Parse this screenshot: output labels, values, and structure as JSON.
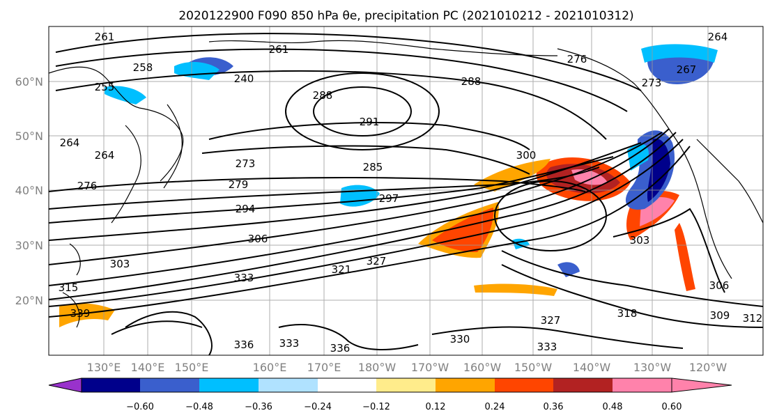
{
  "title": "2020122900 F090 850 hPa θe, precipitation PC (2021010212 - 2021010312)",
  "map": {
    "lat_labels": [
      "60°N",
      "50°N",
      "40°N",
      "30°N",
      "20°N"
    ],
    "lon_labels": [
      "130°E",
      "140°E",
      "150°E",
      "160°E",
      "170°E",
      "180°W",
      "170°W",
      "160°W",
      "150°W",
      "140°W",
      "130°W",
      "120°W"
    ],
    "contour_labels": [
      "261",
      "258",
      "255",
      "264",
      "264",
      "276",
      "261",
      "240",
      "288",
      "291",
      "288",
      "285",
      "279",
      "273",
      "294",
      "297",
      "300",
      "306",
      "303",
      "303",
      "315",
      "333",
      "321",
      "327",
      "336",
      "330",
      "333",
      "333",
      "336",
      "339",
      "327",
      "318",
      "309",
      "306",
      "312",
      "264",
      "267",
      "273",
      "276"
    ]
  },
  "colorbar": {
    "ticks": [
      "−0.60",
      "−0.48",
      "−0.36",
      "−0.24",
      "−0.12",
      "0.12",
      "0.24",
      "0.36",
      "0.48",
      "0.60"
    ],
    "colors": [
      "#9932cc",
      "#00008b",
      "#3a5fcd",
      "#00bfff",
      "#b0e2ff",
      "#ffffff",
      "#ffec8b",
      "#ffa500",
      "#ff4500",
      "#b22222",
      "#ff82ab"
    ]
  },
  "colors": {
    "gridline": "#999999",
    "contour": "#000000",
    "tick_text": "#808080"
  }
}
